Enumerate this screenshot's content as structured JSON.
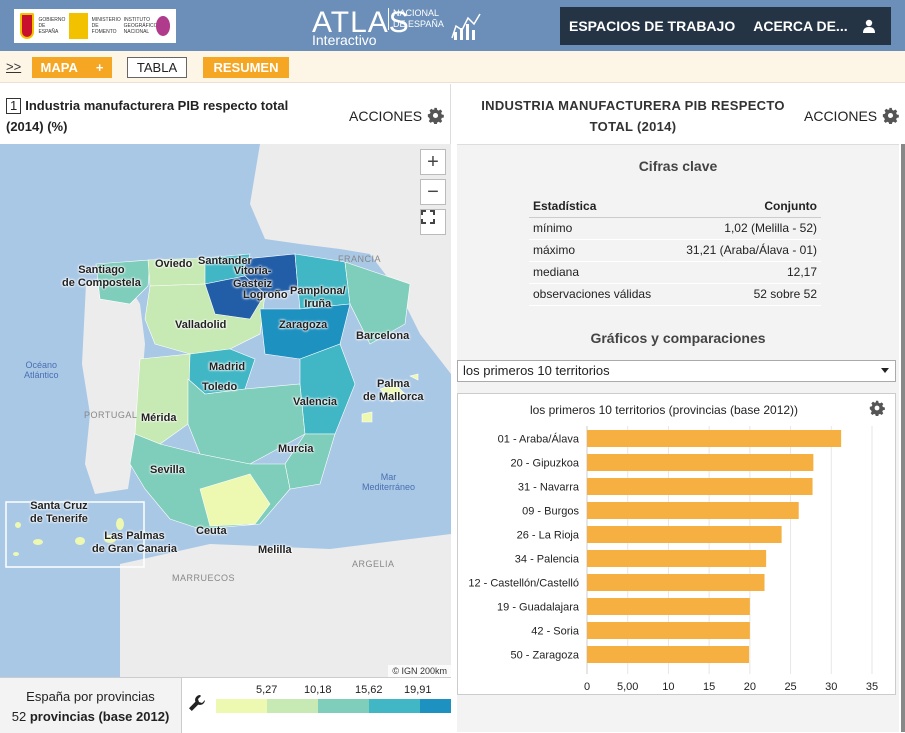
{
  "header": {
    "ministry_lines": [
      "GOBIERNO DE ESPAÑA",
      "MINISTERIO DE FOMENTO",
      "INSTITUTO GEOGRÁFICO NACIONAL"
    ],
    "logo_atlas": "ATLAS",
    "logo_nacional": "NACIONAL DE ESPAÑA",
    "logo_interactivo": "Interactivo",
    "nav_workspaces": "ESPACIOS DE TRABAJO",
    "nav_about": "ACERCA DE...",
    "user_icon": "user-icon"
  },
  "toolbar": {
    "expand": ">>",
    "mapa": "MAPA",
    "mapa_plus": "+",
    "tabla": "TABLA",
    "resumen": "RESUMEN"
  },
  "left": {
    "num": "1",
    "title": "Industria manufacturera PIB respecto total (2014) (%)",
    "acciones": "ACCIONES",
    "zoom_in": "+",
    "zoom_out": "−",
    "fullscreen": "⛶",
    "attribution": "© IGN  200km",
    "labels": {
      "santiago": "Santiago\nde Compostela",
      "oviedo": "Oviedo",
      "santander": "Santander",
      "vitoria": "Vitoria-\nGasteiz",
      "pamplona": "Pamplona/\nIruña",
      "logrono": "Logroño",
      "valladolid": "Valladolid",
      "zaragoza": "Zaragoza",
      "barcelona": "Barcelona",
      "madrid": "Madrid",
      "toledo": "Toledo",
      "valencia": "Valencia",
      "palma": "Palma\nde Mallorca",
      "merida": "Mérida",
      "murcia": "Murcia",
      "sevilla": "Sevilla",
      "ceuta": "Ceuta",
      "melilla": "Melilla",
      "santa_cruz": "Santa Cruz\nde Tenerife",
      "las_palmas": "Las Palmas\nde Gran Canaria"
    },
    "countries": {
      "francia": "FRANCIA",
      "portugal": "PORTUGAL",
      "marruecos": "MARRUECOS",
      "argelia": "ARGELIA"
    },
    "seas": {
      "atlantico": "Océano\nAtlántico",
      "mediterraneo": "Mar\nMediterráneo"
    },
    "legend": {
      "line1": "España por provincias",
      "count": "52",
      "unit": "provincias (base 2012)",
      "ticks": [
        "5,27",
        "10,18",
        "15,62",
        "19,91"
      ],
      "colors": [
        "#edf8b1",
        "#c7e9b4",
        "#7fcdbb",
        "#41b6c4",
        "#1d91c0"
      ]
    }
  },
  "right": {
    "title": "INDUSTRIA MANUFACTURERA PIB RESPECTO TOTAL (2014)",
    "acciones": "ACCIONES",
    "cifras_title": "Cifras clave",
    "stats_header": [
      "Estadística",
      "Conjunto"
    ],
    "stats": [
      {
        "label": "mínimo",
        "value": "1,02 (Melilla - 52)"
      },
      {
        "label": "máximo",
        "value": "31,21 (Araba/Álava - 01)"
      },
      {
        "label": "mediana",
        "value": "12,17"
      },
      {
        "label": "observaciones válidas",
        "value": "52 sobre 52"
      }
    ],
    "graficos_title": "Gráficos y comparaciones",
    "select_value": "los primeros 10 territorios"
  },
  "chart_data": {
    "type": "bar",
    "orientation": "horizontal",
    "title": "los primeros 10 territorios (provincias (base 2012))",
    "categories": [
      "01 - Araba/Álava",
      "20 - Gipuzkoa",
      "31 - Navarra",
      "09 - Burgos",
      "26 - La Rioja",
      "34 - Palencia",
      "12 - Castellón/Castelló",
      "19 - Guadalajara",
      "42 - Soria",
      "50 - Zaragoza"
    ],
    "values": [
      31.21,
      27.8,
      27.7,
      26.0,
      23.9,
      22.0,
      21.8,
      20.0,
      20.0,
      19.9
    ],
    "xlim": [
      0,
      35
    ],
    "xticks": [
      "0",
      "5,00",
      "10",
      "15",
      "20",
      "25",
      "30",
      "35"
    ],
    "bar_color": "#f5b041",
    "grid": true
  }
}
